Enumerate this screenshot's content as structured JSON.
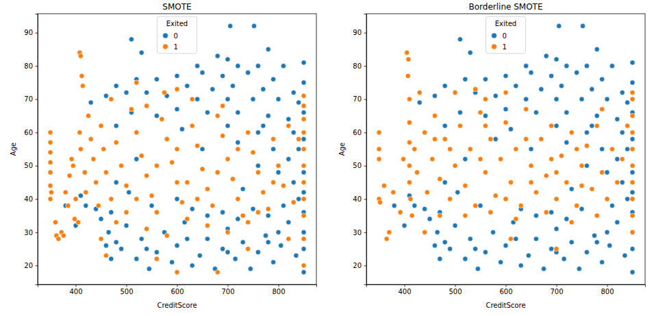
{
  "chart_data": [
    {
      "type": "scatter",
      "title": "SMOTE",
      "x_label": "CreditScore",
      "y_label": "Age",
      "legend_title": "Exited",
      "legend": "upper center",
      "grid": false,
      "xlim": [
        325,
        875
      ],
      "ylim": [
        14.3,
        95.7
      ],
      "xticks": [
        400,
        500,
        600,
        700,
        800
      ],
      "yticks": [
        20,
        30,
        40,
        50,
        60,
        70,
        80,
        90
      ],
      "series": [
        {
          "name": "0",
          "color": "#1f77b4",
          "marker": "circle",
          "x": [
            510,
            705,
            752,
            530,
            680,
            700,
            780,
            640,
            720,
            760,
            810,
            850,
            600,
            650,
            690,
            740,
            790,
            560,
            520,
            480,
            620,
            670,
            710,
            770,
            830,
            850,
            500,
            540,
            580,
            640,
            700,
            750,
            800,
            840,
            460,
            430,
            600,
            660,
            720,
            780,
            820,
            510,
            560,
            850,
            480,
            700,
            770,
            830,
            850,
            610,
            440,
            450,
            465,
            470,
            480,
            490,
            500,
            520,
            530,
            545,
            560,
            575,
            590,
            600,
            615,
            630,
            645,
            660,
            675,
            690,
            700,
            715,
            730,
            745,
            760,
            775,
            790,
            805,
            820,
            835,
            850,
            850,
            850,
            850,
            850,
            850,
            840,
            810,
            780,
            750,
            720,
            690,
            660,
            630,
            420,
            410,
            400,
            380,
            460,
            470,
            540,
            620,
            700,
            780,
            800,
            830,
            820,
            790,
            760,
            730,
            600,
            550,
            505,
            480,
            520,
            580,
            650,
            720,
            760,
            800,
            840
          ],
          "values": [
            88,
            92,
            92,
            84,
            83,
            82,
            85,
            80,
            80,
            80,
            80,
            81,
            77,
            78,
            77,
            78,
            76,
            76,
            76,
            74,
            74,
            73,
            74,
            73,
            72,
            75,
            72,
            72,
            71,
            70,
            70,
            70,
            70,
            69,
            71,
            69,
            67,
            66,
            66,
            65,
            64,
            66,
            65,
            66,
            62,
            62,
            62,
            60,
            58,
            61,
            37,
            34,
            30,
            36,
            27,
            25,
            32,
            22,
            28,
            19,
            24,
            30,
            21,
            26,
            33,
            20,
            23,
            28,
            19,
            25,
            31,
            22,
            27,
            19,
            24,
            29,
            21,
            26,
            33,
            23,
            18,
            25,
            30,
            36,
            42,
            48,
            40,
            38,
            35,
            37,
            34,
            36,
            35,
            37,
            38,
            41,
            32,
            38,
            26,
            22,
            25,
            28,
            24,
            27,
            30,
            45,
            52,
            55,
            50,
            43,
            40,
            38,
            42,
            45,
            52,
            58,
            55,
            57,
            60,
            48,
            55
          ]
        },
        {
          "name": "1",
          "color": "#ff7f0e",
          "marker": "circle",
          "x": [
            350,
            350,
            350,
            350,
            350,
            350,
            350,
            352,
            360,
            362,
            366,
            372,
            376,
            380,
            385,
            388,
            392,
            395,
            398,
            400,
            405,
            408,
            410,
            412,
            414,
            408,
            410,
            418,
            420,
            425,
            430,
            435,
            440,
            445,
            450,
            455,
            460,
            470,
            480,
            490,
            500,
            510,
            520,
            530,
            540,
            550,
            560,
            570,
            580,
            590,
            600,
            610,
            620,
            630,
            640,
            650,
            660,
            670,
            680,
            690,
            700,
            710,
            720,
            730,
            740,
            750,
            760,
            770,
            780,
            790,
            800,
            810,
            820,
            830,
            500,
            540,
            580,
            620,
            660,
            700,
            740,
            600,
            560,
            520,
            480,
            640,
            680,
            720,
            760,
            790,
            540,
            575,
            600,
            520,
            630,
            470,
            690,
            850,
            850,
            850,
            850,
            850,
            850,
            850,
            850,
            850,
            850,
            850,
            840,
            450,
            600,
            680,
            560,
            740,
            820,
            460
          ],
          "values": [
            60,
            57,
            54,
            51,
            48,
            44,
            40,
            42,
            33,
            29,
            28,
            30,
            29,
            42,
            38,
            47,
            52,
            50,
            34,
            40,
            33,
            84,
            83,
            77,
            74,
            60,
            55,
            48,
            42,
            65,
            58,
            52,
            45,
            38,
            62,
            55,
            48,
            40,
            57,
            50,
            44,
            67,
            60,
            53,
            47,
            41,
            36,
            64,
            58,
            51,
            45,
            39,
            34,
            62,
            56,
            49,
            43,
            38,
            65,
            59,
            52,
            46,
            40,
            35,
            60,
            54,
            48,
            42,
            37,
            58,
            50,
            44,
            62,
            39,
            36,
            31,
            29,
            45,
            32,
            30,
            33,
            55,
            50,
            40,
            33,
            40,
            48,
            55,
            36,
            45,
            68,
            72,
            73,
            75,
            70,
            70,
            68,
            20,
            28,
            35,
            40,
            45,
            50,
            55,
            60,
            64,
            68,
            71,
            58,
            28,
            18,
            18,
            22,
            25,
            28,
            23
          ]
        }
      ]
    },
    {
      "type": "scatter",
      "title": "Borderline SMOTE",
      "x_label": "CreditScore",
      "y_label": "Age",
      "legend_title": "Exited",
      "legend": "upper center",
      "grid": false,
      "xlim": [
        325,
        875
      ],
      "ylim": [
        14.3,
        95.7
      ],
      "xticks": [
        400,
        500,
        600,
        700,
        800
      ],
      "yticks": [
        20,
        30,
        40,
        50,
        60,
        70,
        80,
        90
      ],
      "series": [
        {
          "name": "0",
          "color": "#1f77b4",
          "marker": "circle",
          "x": [
            510,
            705,
            752,
            530,
            680,
            700,
            780,
            640,
            720,
            760,
            810,
            850,
            600,
            650,
            690,
            740,
            790,
            560,
            520,
            480,
            620,
            670,
            710,
            770,
            830,
            850,
            500,
            540,
            580,
            640,
            700,
            750,
            800,
            840,
            460,
            430,
            600,
            660,
            720,
            780,
            820,
            510,
            560,
            850,
            480,
            700,
            770,
            830,
            850,
            610,
            440,
            450,
            465,
            470,
            480,
            490,
            500,
            520,
            530,
            545,
            560,
            575,
            590,
            600,
            615,
            630,
            645,
            660,
            675,
            690,
            700,
            715,
            730,
            745,
            760,
            775,
            790,
            805,
            820,
            835,
            850,
            850,
            850,
            850,
            850,
            850,
            840,
            810,
            780,
            750,
            720,
            690,
            660,
            630,
            420,
            410,
            400,
            380,
            460,
            470,
            540,
            620,
            700,
            780,
            800,
            830,
            820,
            790,
            760,
            730,
            600,
            550,
            505,
            480,
            520,
            580,
            650,
            720,
            760,
            800,
            840
          ],
          "values": [
            88,
            92,
            92,
            84,
            83,
            82,
            85,
            80,
            80,
            80,
            80,
            81,
            77,
            78,
            77,
            78,
            76,
            76,
            76,
            74,
            74,
            73,
            74,
            73,
            72,
            75,
            72,
            72,
            71,
            70,
            70,
            70,
            70,
            69,
            71,
            69,
            67,
            66,
            66,
            65,
            64,
            66,
            65,
            66,
            62,
            62,
            62,
            60,
            58,
            61,
            37,
            34,
            30,
            36,
            27,
            25,
            32,
            22,
            28,
            19,
            24,
            30,
            21,
            26,
            33,
            20,
            23,
            28,
            19,
            25,
            31,
            22,
            27,
            19,
            24,
            29,
            21,
            26,
            33,
            23,
            18,
            25,
            30,
            36,
            42,
            48,
            40,
            38,
            35,
            37,
            34,
            36,
            35,
            37,
            38,
            41,
            32,
            38,
            26,
            22,
            25,
            28,
            24,
            27,
            30,
            45,
            52,
            55,
            50,
            43,
            40,
            38,
            42,
            45,
            52,
            58,
            55,
            57,
            60,
            48,
            55
          ]
        },
        {
          "name": "1",
          "color": "#ff7f0e",
          "marker": "circle",
          "x": [
            350,
            350,
            350,
            350,
            352,
            360,
            365,
            370,
            378,
            392,
            398,
            405,
            408,
            407,
            410,
            410,
            410,
            410,
            410,
            412,
            415,
            420,
            425,
            430,
            440,
            445,
            455,
            460,
            470,
            480,
            490,
            500,
            510,
            520,
            530,
            540,
            550,
            560,
            570,
            580,
            590,
            600,
            610,
            620,
            630,
            640,
            650,
            660,
            670,
            680,
            690,
            700,
            710,
            720,
            730,
            740,
            750,
            760,
            770,
            780,
            790,
            800,
            810,
            820,
            830,
            840,
            500,
            540,
            560,
            600,
            470,
            520,
            570,
            620,
            680,
            730,
            780,
            600,
            650,
            700,
            750,
            550,
            490,
            640,
            690,
            740,
            850,
            850,
            850,
            850,
            850,
            850,
            850,
            850,
            850,
            850,
            440,
            700,
            610,
            560,
            460,
            790
          ],
          "values": [
            60,
            55,
            52,
            40,
            39,
            44,
            28,
            30,
            42,
            36,
            52,
            84,
            82,
            77,
            70,
            63,
            57,
            50,
            45,
            40,
            35,
            55,
            48,
            72,
            60,
            42,
            52,
            65,
            46,
            58,
            40,
            50,
            62,
            44,
            55,
            38,
            66,
            48,
            58,
            41,
            52,
            63,
            45,
            55,
            38,
            67,
            50,
            42,
            58,
            47,
            62,
            40,
            53,
            45,
            60,
            38,
            50,
            56,
            43,
            62,
            48,
            40,
            55,
            45,
            52,
            62,
            72,
            73,
            70,
            72,
            35,
            35,
            36,
            34,
            36,
            33,
            35,
            40,
            45,
            48,
            44,
            52,
            55,
            58,
            52,
            55,
            30,
            35,
            40,
            45,
            50,
            55,
            60,
            65,
            70,
            72,
            30,
            25,
            28,
            62,
            58,
            67
          ]
        }
      ]
    }
  ]
}
